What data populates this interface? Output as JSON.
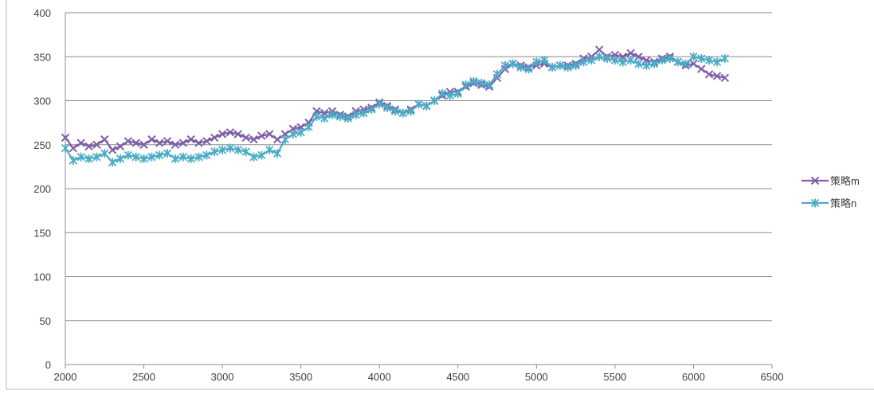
{
  "chart_data": {
    "type": "line",
    "title": "",
    "xlabel": "",
    "ylabel": "",
    "xlim": [
      2000,
      6500
    ],
    "ylim": [
      0,
      400
    ],
    "x_ticks": [
      2000,
      2500,
      3000,
      3500,
      4000,
      4500,
      5000,
      5500,
      6000,
      6500
    ],
    "y_ticks": [
      0,
      50,
      100,
      150,
      200,
      250,
      300,
      350,
      400
    ],
    "grid": "horizontal",
    "legend_position": "right",
    "series": [
      {
        "name": "策略m",
        "color": "#7f5fa8",
        "marker": "x-cross",
        "x": [
          2000,
          2050,
          2100,
          2150,
          2200,
          2250,
          2300,
          2350,
          2400,
          2450,
          2500,
          2550,
          2600,
          2650,
          2700,
          2750,
          2800,
          2850,
          2900,
          2950,
          3000,
          3050,
          3100,
          3150,
          3200,
          3250,
          3300,
          3350,
          3400,
          3450,
          3500,
          3550,
          3600,
          3650,
          3700,
          3750,
          3800,
          3850,
          3900,
          3950,
          4000,
          4050,
          4100,
          4150,
          4200,
          4250,
          4300,
          4350,
          4400,
          4450,
          4500,
          4550,
          4600,
          4650,
          4700,
          4750,
          4800,
          4850,
          4900,
          4950,
          5000,
          5050,
          5100,
          5150,
          5200,
          5250,
          5300,
          5350,
          5400,
          5450,
          5500,
          5550,
          5600,
          5650,
          5700,
          5750,
          5800,
          5850,
          5900,
          5950,
          6000,
          6050,
          6100,
          6150,
          6200
        ],
        "y": [
          258,
          246,
          252,
          248,
          250,
          256,
          244,
          248,
          254,
          252,
          250,
          256,
          252,
          254,
          250,
          252,
          256,
          252,
          254,
          258,
          262,
          264,
          262,
          258,
          256,
          260,
          262,
          256,
          262,
          268,
          270,
          275,
          288,
          286,
          288,
          284,
          282,
          288,
          290,
          292,
          298,
          294,
          290,
          286,
          290,
          296,
          294,
          300,
          306,
          310,
          310,
          316,
          320,
          318,
          316,
          326,
          336,
          342,
          340,
          338,
          340,
          342,
          338,
          340,
          340,
          342,
          348,
          350,
          358,
          350,
          352,
          350,
          354,
          350,
          346,
          344,
          348,
          350,
          344,
          340,
          342,
          336,
          330,
          328,
          326
        ]
      },
      {
        "name": "策略n",
        "color": "#4bacc6",
        "marker": "star",
        "x": [
          2000,
          2050,
          2100,
          2150,
          2200,
          2250,
          2300,
          2350,
          2400,
          2450,
          2500,
          2550,
          2600,
          2650,
          2700,
          2750,
          2800,
          2850,
          2900,
          2950,
          3000,
          3050,
          3100,
          3150,
          3200,
          3250,
          3300,
          3350,
          3400,
          3450,
          3500,
          3550,
          3600,
          3650,
          3700,
          3750,
          3800,
          3850,
          3900,
          3950,
          4000,
          4050,
          4100,
          4150,
          4200,
          4250,
          4300,
          4350,
          4400,
          4450,
          4500,
          4550,
          4600,
          4650,
          4700,
          4750,
          4800,
          4850,
          4900,
          4950,
          5000,
          5050,
          5100,
          5150,
          5200,
          5250,
          5300,
          5350,
          5400,
          5450,
          5500,
          5550,
          5600,
          5650,
          5700,
          5750,
          5800,
          5850,
          5900,
          5950,
          6000,
          6050,
          6100,
          6150,
          6200
        ],
        "y": [
          246,
          232,
          236,
          234,
          236,
          240,
          230,
          234,
          238,
          236,
          234,
          236,
          238,
          240,
          234,
          236,
          234,
          236,
          238,
          242,
          244,
          246,
          244,
          242,
          236,
          238,
          244,
          240,
          256,
          262,
          264,
          270,
          282,
          280,
          284,
          282,
          280,
          284,
          286,
          290,
          296,
          292,
          288,
          286,
          288,
          296,
          294,
          300,
          308,
          306,
          308,
          318,
          322,
          320,
          318,
          330,
          340,
          342,
          338,
          336,
          344,
          346,
          338,
          340,
          338,
          340,
          344,
          346,
          350,
          348,
          346,
          344,
          346,
          342,
          340,
          342,
          346,
          348,
          344,
          342,
          350,
          348,
          346,
          344,
          348
        ]
      }
    ]
  }
}
